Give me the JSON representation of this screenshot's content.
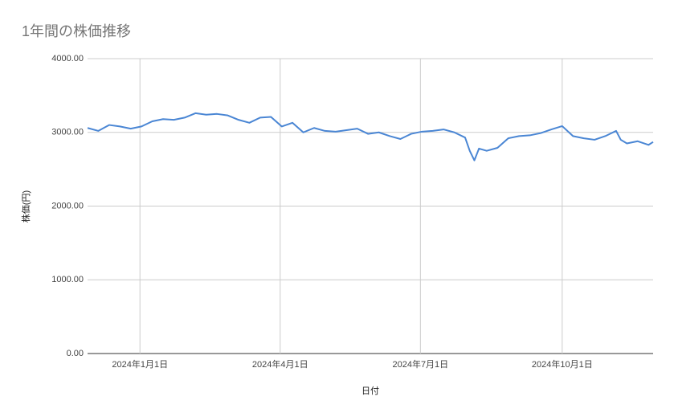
{
  "chart_data": {
    "type": "line",
    "title": "1年間の株価推移",
    "x_label": "日付",
    "y_label": "株価(円)",
    "x": [
      "2023-11-28",
      "2023-12-05",
      "2023-12-12",
      "2023-12-19",
      "2023-12-26",
      "2024-01-02",
      "2024-01-09",
      "2024-01-16",
      "2024-01-23",
      "2024-01-30",
      "2024-02-06",
      "2024-02-13",
      "2024-02-20",
      "2024-02-27",
      "2024-03-05",
      "2024-03-12",
      "2024-03-19",
      "2024-03-26",
      "2024-04-02",
      "2024-04-09",
      "2024-04-16",
      "2024-04-23",
      "2024-04-30",
      "2024-05-07",
      "2024-05-14",
      "2024-05-21",
      "2024-05-28",
      "2024-06-04",
      "2024-06-11",
      "2024-06-18",
      "2024-06-25",
      "2024-07-02",
      "2024-07-09",
      "2024-07-16",
      "2024-07-23",
      "2024-07-30",
      "2024-08-02",
      "2024-08-05",
      "2024-08-08",
      "2024-08-13",
      "2024-08-20",
      "2024-08-27",
      "2024-09-03",
      "2024-09-10",
      "2024-09-17",
      "2024-09-24",
      "2024-10-01",
      "2024-10-08",
      "2024-10-15",
      "2024-10-22",
      "2024-10-29",
      "2024-11-05",
      "2024-11-08",
      "2024-11-12",
      "2024-11-19",
      "2024-11-26",
      "2024-11-29"
    ],
    "values": [
      3060,
      3020,
      3100,
      3080,
      3050,
      3080,
      3150,
      3180,
      3170,
      3200,
      3260,
      3240,
      3250,
      3230,
      3170,
      3130,
      3200,
      3210,
      3080,
      3130,
      3000,
      3060,
      3020,
      3010,
      3030,
      3050,
      2980,
      3000,
      2950,
      2910,
      2980,
      3010,
      3020,
      3040,
      3000,
      2930,
      2750,
      2620,
      2780,
      2750,
      2790,
      2920,
      2950,
      2960,
      2990,
      3040,
      3085,
      2950,
      2920,
      2900,
      2950,
      3020,
      2900,
      2850,
      2880,
      2830,
      2870
    ],
    "color": "#4a86d4",
    "xlim": [
      "2023-11-28",
      "2024-11-29"
    ],
    "xticks": [
      {
        "value": "2024-01-01",
        "label": "2024年1月1日"
      },
      {
        "value": "2024-04-01",
        "label": "2024年4月1日"
      },
      {
        "value": "2024-07-01",
        "label": "2024年7月1日"
      },
      {
        "value": "2024-10-01",
        "label": "2024年10月1日"
      }
    ],
    "ylim": [
      0,
      4000
    ],
    "yticks": [
      {
        "value": 0,
        "label": "0.00"
      },
      {
        "value": 1000,
        "label": "1000.00"
      },
      {
        "value": 2000,
        "label": "2000.00"
      },
      {
        "value": 3000,
        "label": "3000.00"
      },
      {
        "value": 4000,
        "label": "4000.00"
      }
    ],
    "grid": true
  }
}
